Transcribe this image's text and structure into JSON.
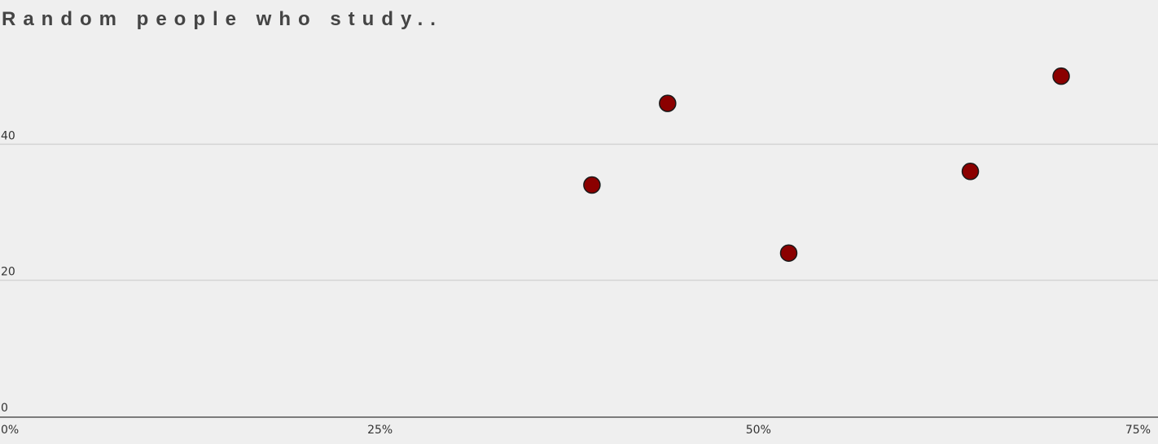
{
  "chart_data": {
    "type": "scatter",
    "title": "Random people who study..",
    "xlabel": "",
    "ylabel": "",
    "xlim": [
      0,
      75
    ],
    "ylim": [
      0,
      60
    ],
    "x_ticks": [
      {
        "value": 0,
        "label": "0%"
      },
      {
        "value": 25,
        "label": "25%"
      },
      {
        "value": 50,
        "label": "50%"
      },
      {
        "value": 75,
        "label": "75%"
      }
    ],
    "y_ticks": [
      {
        "value": 0,
        "label": "0"
      },
      {
        "value": 20,
        "label": "20"
      },
      {
        "value": 40,
        "label": "40"
      }
    ],
    "grid": "horizontal",
    "point_color": "#8b0000",
    "point_stroke": "#1a1a1a",
    "series": [
      {
        "points": [
          {
            "x": 39,
            "y": 34
          },
          {
            "x": 44,
            "y": 46
          },
          {
            "x": 52,
            "y": 24
          },
          {
            "x": 64,
            "y": 36
          },
          {
            "x": 70,
            "y": 50
          }
        ]
      }
    ]
  }
}
